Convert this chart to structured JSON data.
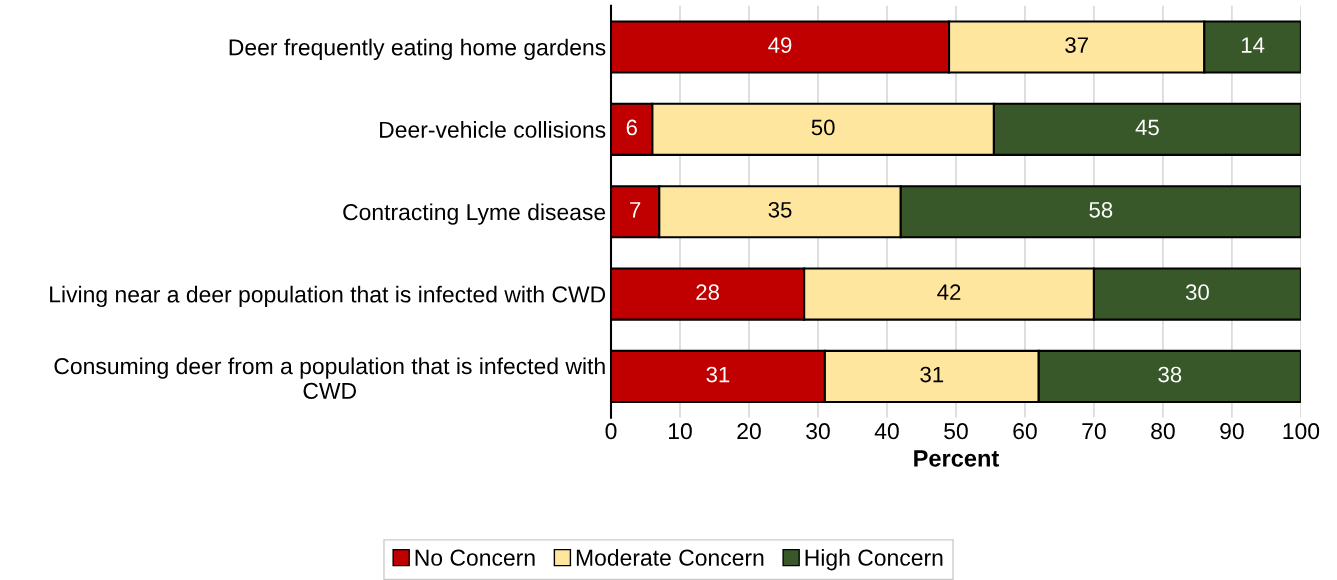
{
  "chart_data": {
    "type": "bar",
    "orientation": "horizontal",
    "stacked": true,
    "xlabel": "Percent",
    "categories": [
      "Deer frequently eating home gardens",
      "Deer-vehicle collisions",
      "Contracting Lyme disease",
      "Living near a deer population that is infected with CWD",
      "Consuming deer from a population that is infected with CWD"
    ],
    "series": [
      {
        "name": "No Concern",
        "color": "#c00000",
        "values": [
          49,
          6,
          7,
          28,
          31
        ],
        "value_labels": [
          "49",
          "6",
          "7",
          "28",
          "31"
        ]
      },
      {
        "name": "Moderate Concern",
        "color": "#ffe69f",
        "values": [
          37,
          49.5,
          35,
          42,
          31
        ],
        "value_labels": [
          "37",
          "50",
          "35",
          "42",
          "31"
        ]
      },
      {
        "name": "High Concern",
        "color": "#38582a",
        "values": [
          14,
          44.5,
          58,
          30,
          38
        ],
        "value_labels": [
          "14",
          "45",
          "58",
          "30",
          "38"
        ]
      }
    ],
    "xlim": [
      0,
      100
    ],
    "xticks": [
      0,
      10,
      20,
      30,
      40,
      50,
      60,
      70,
      80,
      90,
      100
    ],
    "grid": "x",
    "legend": "bottom"
  }
}
